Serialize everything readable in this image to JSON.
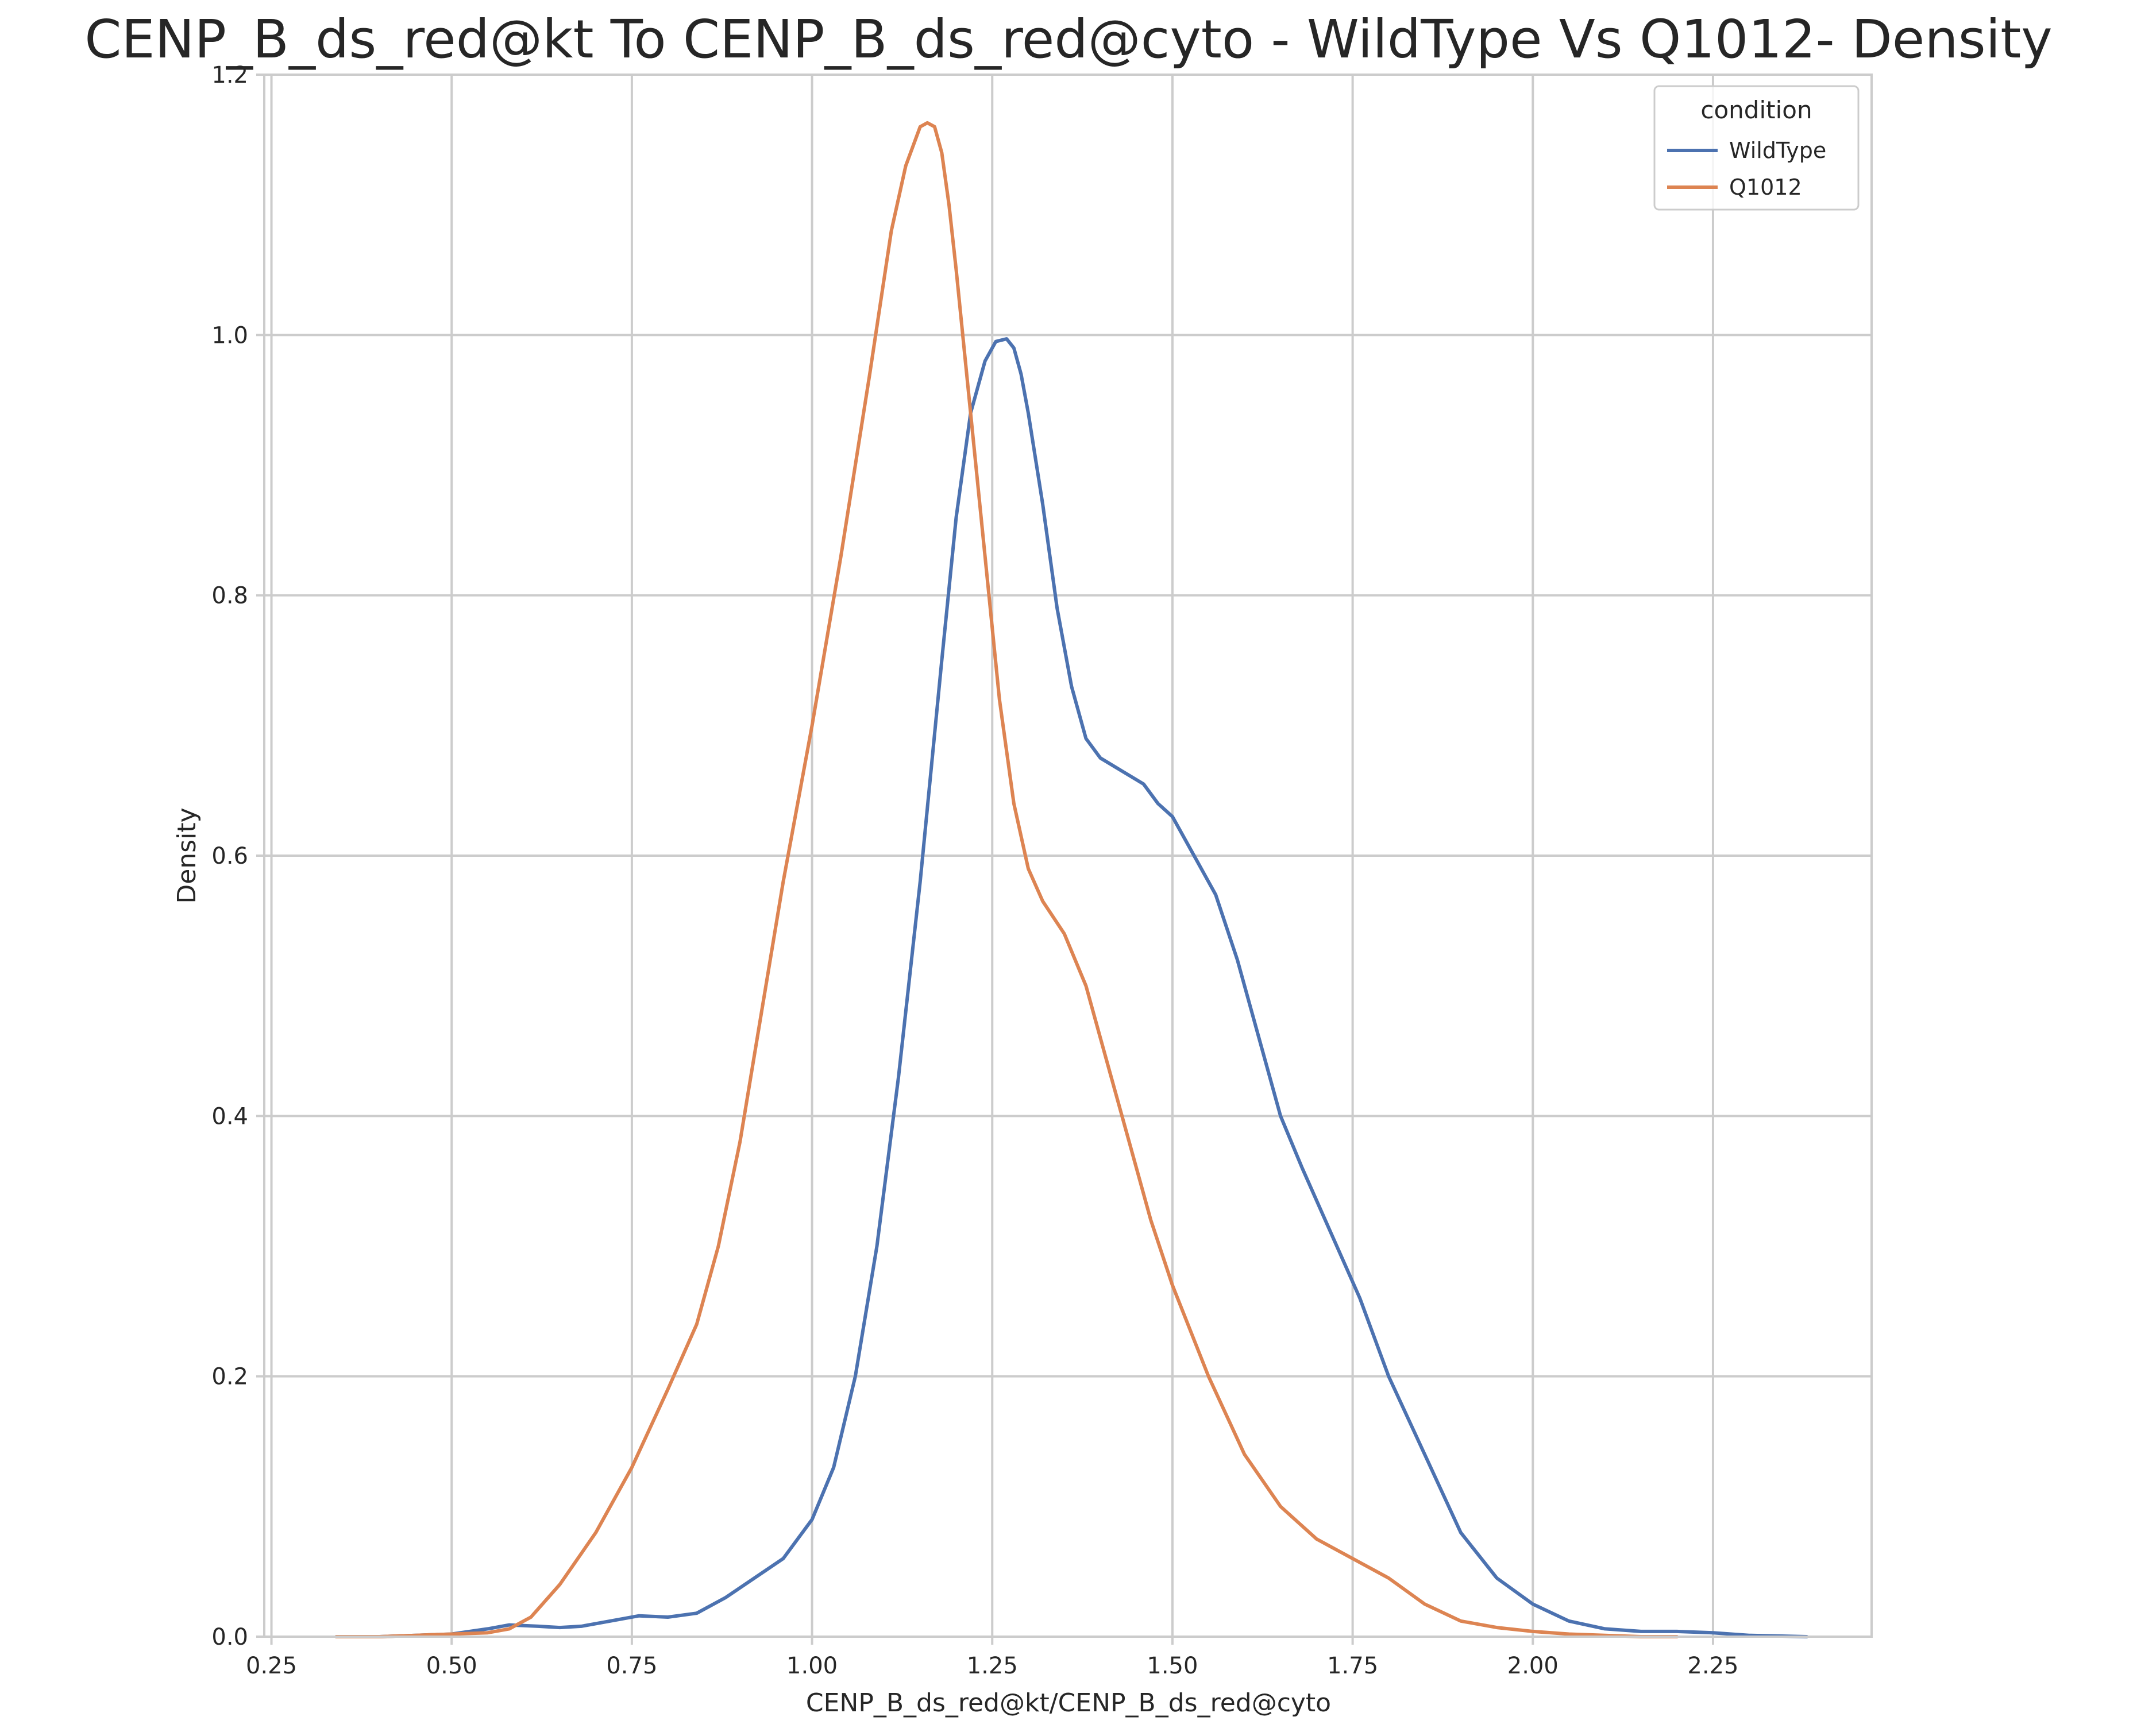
{
  "chart_data": {
    "type": "line",
    "title": "CENP_B_ds_red@kt To CENP_B_ds_red@cyto - WildType Vs Q1012- Density",
    "xlabel": "CENP_B_ds_red@kt/CENP_B_ds_red@cyto",
    "ylabel": "Density",
    "xlim": [
      0.24,
      2.47
    ],
    "ylim": [
      0,
      1.2
    ],
    "xticks": [
      "0.25",
      "0.50",
      "0.75",
      "1.00",
      "1.25",
      "1.50",
      "1.75",
      "2.00",
      "2.25"
    ],
    "yticks": [
      "0.0",
      "0.2",
      "0.4",
      "0.6",
      "0.8",
      "1.0",
      "1.2"
    ],
    "grid": true,
    "legend": {
      "title": "condition",
      "placement": "top-right"
    },
    "series": [
      {
        "name": "WildType",
        "color": "#4c72b0",
        "x": [
          0.34,
          0.4,
          0.45,
          0.5,
          0.55,
          0.58,
          0.62,
          0.65,
          0.68,
          0.72,
          0.76,
          0.8,
          0.84,
          0.88,
          0.92,
          0.96,
          1.0,
          1.03,
          1.06,
          1.09,
          1.12,
          1.15,
          1.18,
          1.2,
          1.22,
          1.24,
          1.255,
          1.27,
          1.28,
          1.29,
          1.3,
          1.32,
          1.34,
          1.36,
          1.38,
          1.4,
          1.43,
          1.46,
          1.48,
          1.5,
          1.53,
          1.56,
          1.59,
          1.62,
          1.65,
          1.68,
          1.72,
          1.76,
          1.8,
          1.85,
          1.9,
          1.95,
          2.0,
          2.05,
          2.1,
          2.15,
          2.2,
          2.25,
          2.3,
          2.38
        ],
        "values": [
          0.0,
          0.0,
          0.001,
          0.002,
          0.006,
          0.009,
          0.008,
          0.007,
          0.008,
          0.012,
          0.016,
          0.015,
          0.018,
          0.03,
          0.045,
          0.06,
          0.09,
          0.13,
          0.2,
          0.3,
          0.43,
          0.58,
          0.75,
          0.86,
          0.94,
          0.98,
          0.995,
          0.997,
          0.99,
          0.97,
          0.94,
          0.87,
          0.79,
          0.73,
          0.69,
          0.675,
          0.665,
          0.655,
          0.64,
          0.63,
          0.6,
          0.57,
          0.52,
          0.46,
          0.4,
          0.36,
          0.31,
          0.26,
          0.2,
          0.14,
          0.08,
          0.045,
          0.025,
          0.012,
          0.006,
          0.004,
          0.004,
          0.003,
          0.001,
          0.0
        ]
      },
      {
        "name": "Q1012",
        "color": "#dd8452",
        "x": [
          0.34,
          0.4,
          0.45,
          0.5,
          0.55,
          0.58,
          0.61,
          0.65,
          0.7,
          0.75,
          0.8,
          0.84,
          0.87,
          0.9,
          0.93,
          0.96,
          1.0,
          1.04,
          1.08,
          1.11,
          1.13,
          1.15,
          1.16,
          1.17,
          1.18,
          1.19,
          1.2,
          1.22,
          1.24,
          1.26,
          1.28,
          1.3,
          1.32,
          1.35,
          1.38,
          1.41,
          1.44,
          1.47,
          1.5,
          1.55,
          1.6,
          1.65,
          1.7,
          1.75,
          1.8,
          1.85,
          1.9,
          1.95,
          2.0,
          2.05,
          2.1,
          2.15,
          2.2
        ],
        "values": [
          0.0,
          0.0,
          0.001,
          0.002,
          0.003,
          0.006,
          0.015,
          0.04,
          0.08,
          0.13,
          0.19,
          0.24,
          0.3,
          0.38,
          0.48,
          0.58,
          0.7,
          0.83,
          0.97,
          1.08,
          1.13,
          1.16,
          1.163,
          1.16,
          1.14,
          1.1,
          1.05,
          0.94,
          0.83,
          0.72,
          0.64,
          0.59,
          0.565,
          0.54,
          0.5,
          0.44,
          0.38,
          0.32,
          0.27,
          0.2,
          0.14,
          0.1,
          0.075,
          0.06,
          0.045,
          0.025,
          0.012,
          0.007,
          0.004,
          0.002,
          0.001,
          0.0,
          0.0
        ]
      }
    ]
  }
}
